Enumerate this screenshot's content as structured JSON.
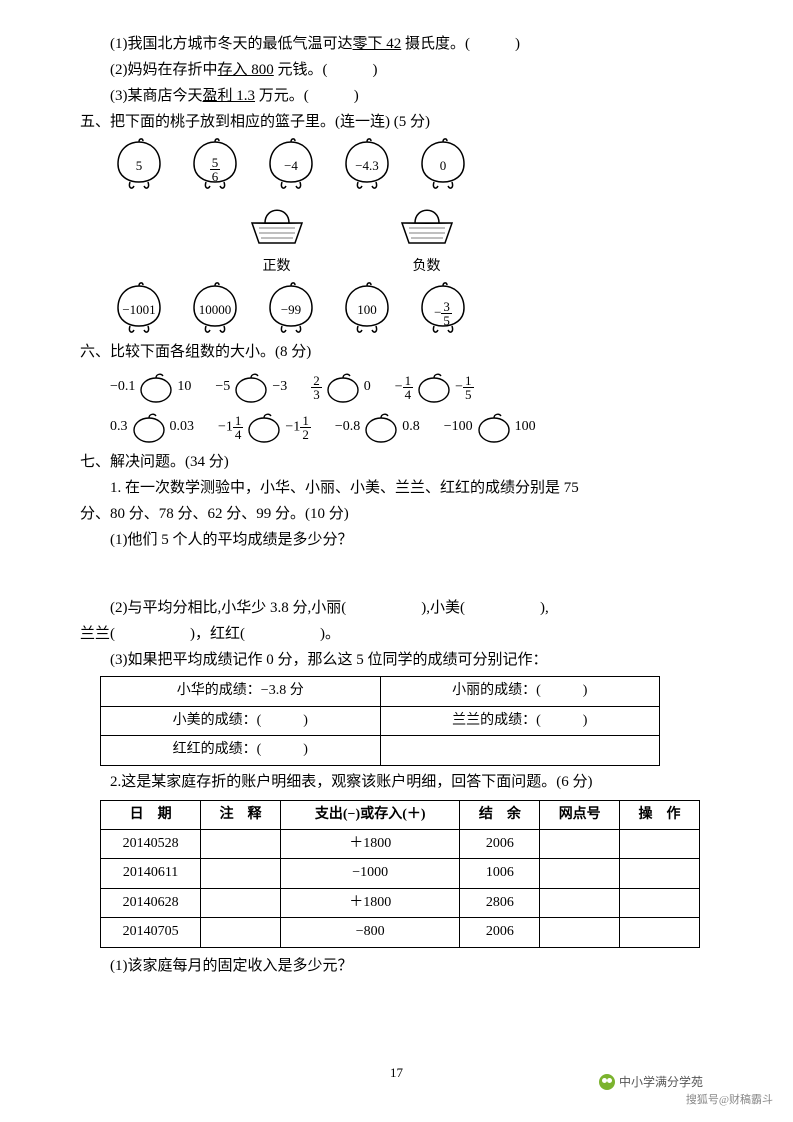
{
  "q4": {
    "sub1": "(1)我国北方城市冬天的最低气温可达",
    "sub1_u": "零下 42",
    "sub1_tail": " 摄氏度。(　　　)",
    "sub2": "(2)妈妈在存折中",
    "sub2_u": "存入 800",
    "sub2_tail": " 元钱。(　　　)",
    "sub3": "(3)某商店今天",
    "sub3_u": "盈利 1.3",
    "sub3_tail": " 万元。(　　　)"
  },
  "q5": {
    "title": "五、把下面的桃子放到相应的篮子里。(连一连) (5 分)",
    "peaches_top": [
      "5",
      "5|6",
      "−4",
      "−4.3",
      "0"
    ],
    "baskets": [
      "正数",
      "负数"
    ],
    "peaches_bottom": [
      "−1001",
      "10000",
      "−99",
      "100",
      "−|3|5"
    ]
  },
  "q6": {
    "title": "六、比较下面各组数的大小。(8 分)",
    "row1": [
      {
        "l": "−0.1",
        "r": "10"
      },
      {
        "l": "−5",
        "r": "−3"
      },
      {
        "l": "2|3",
        "r": "0"
      },
      {
        "l": "−|1|4",
        "r": "−|1|5"
      }
    ],
    "row2": [
      {
        "l": "0.3",
        "r": "0.03"
      },
      {
        "l": "−1|1|4",
        "r": "−1|1|2"
      },
      {
        "l": "−0.8",
        "r": "0.8"
      },
      {
        "l": "−100",
        "r": "100"
      }
    ]
  },
  "q7": {
    "title": "七、解决问题。(34 分)",
    "p1a": "1. 在一次数学测验中，小华、小丽、小美、兰兰、红红的成绩分别是 75",
    "p1b": "分、80 分、78 分、62 分、99 分。(10 分)",
    "p1_1": "(1)他们 5 个人的平均成绩是多少分？",
    "p1_2a": "(2)与平均分相比,小华少 3.8 分,小丽(　　　　　),小美(　　　　　),",
    "p1_2b": "兰兰(　　　　　)，红红(　　　　　)。",
    "p1_3": "(3)如果把平均成绩记作 0 分，那么这 5 位同学的成绩可分别记作：",
    "tbl1": {
      "c1": "小华的成绩：−3.8 分",
      "c2": "小丽的成绩：(　　　)",
      "c3": "小美的成绩：(　　　)",
      "c4": "兰兰的成绩：(　　　)",
      "c5": "红红的成绩：(　　　)"
    },
    "p2": "2.这是某家庭存折的账户明细表，观察该账户明细，回答下面问题。(6 分)",
    "tbl2": {
      "headers": [
        "日　期",
        "注　释",
        "支出(−)或存入(＋)",
        "结　余",
        "网点号",
        "操　作"
      ],
      "rows": [
        [
          "20140528",
          "",
          "＋1800",
          "2006",
          "",
          ""
        ],
        [
          "20140611",
          "",
          "−1000",
          "1006",
          "",
          ""
        ],
        [
          "20140628",
          "",
          "＋1800",
          "2806",
          "",
          ""
        ],
        [
          "20140705",
          "",
          "−800",
          "2006",
          "",
          ""
        ]
      ]
    },
    "p2_1": "(1)该家庭每月的固定收入是多少元？"
  },
  "pagenum": "17",
  "wechat": "中小学满分学苑",
  "watermark": "搜狐号@财稿霸斗"
}
